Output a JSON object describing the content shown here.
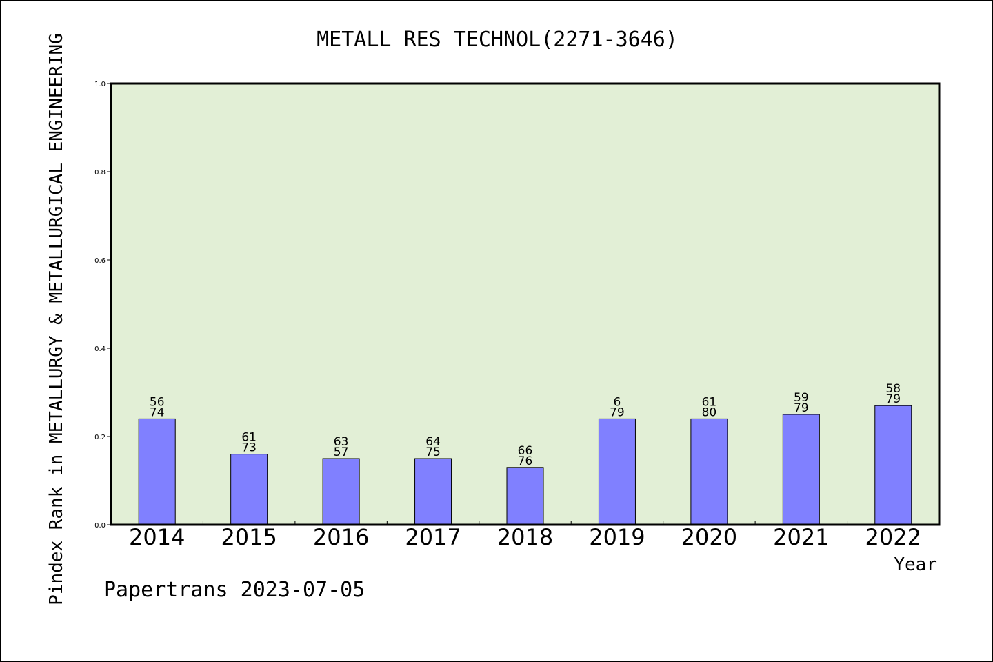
{
  "chart_data": {
    "type": "bar",
    "title": "METALL RES TECHNOL(2271-3646)",
    "xlabel": "Year",
    "ylabel": "Pindex Rank in METALLURGY & METALLURGICAL ENGINEERING",
    "categories": [
      "2014",
      "2015",
      "2016",
      "2017",
      "2018",
      "2019",
      "2020",
      "2021",
      "2022"
    ],
    "values": [
      0.24,
      0.16,
      0.15,
      0.15,
      0.13,
      0.24,
      0.24,
      0.25,
      0.27
    ],
    "bar_labels_top": [
      "56",
      "61",
      "63",
      "64",
      "66",
      "6",
      "61",
      "59",
      "58"
    ],
    "bar_labels_bottom": [
      "74",
      "73",
      "57",
      "75",
      "76",
      "79",
      "80",
      "79",
      "79"
    ],
    "ylim": [
      0,
      1.0
    ],
    "yticks": [
      "0.0",
      "0.2",
      "0.4",
      "0.6",
      "0.8",
      "1.0"
    ],
    "grid": false,
    "colors": {
      "plot_background": "#e2efd6",
      "bar_fill": "#8080ff",
      "bar_stroke": "#000000"
    }
  },
  "footer": "Papertrans 2023-07-05"
}
